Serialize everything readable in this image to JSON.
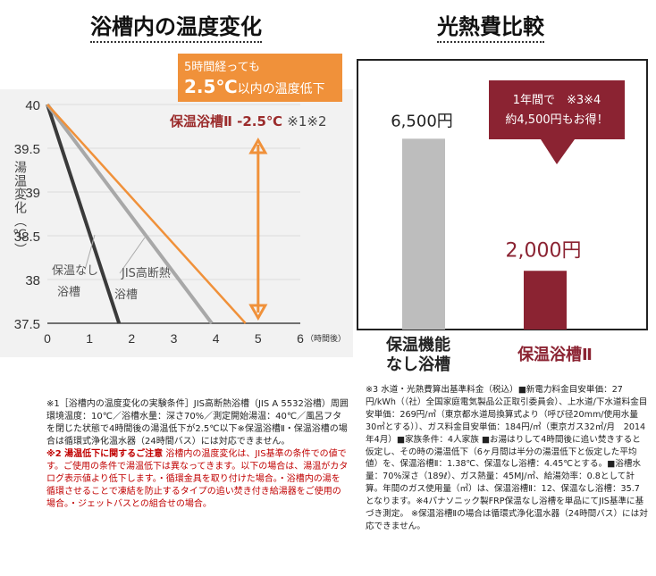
{
  "left_title": "浴槽内の温度変化",
  "right_title": "光熱費比較",
  "chart_data": [
    {
      "type": "line",
      "ylabel": "湯温変化（℃）",
      "xlabel": "（時間後）",
      "x_ticks": [
        "0",
        "1",
        "2",
        "3",
        "4",
        "5",
        "6"
      ],
      "y_ticks": [
        "40",
        "39.5",
        "39",
        "38.5",
        "38",
        "37.5"
      ],
      "xlim": [
        0,
        6
      ],
      "ylim": [
        37.5,
        40
      ],
      "series": [
        {
          "name": "保温なし浴槽",
          "color": "#3a3a3a",
          "x": [
            0,
            1.7
          ],
          "y": [
            40,
            37.5
          ]
        },
        {
          "name": "JIS高断熱浴槽",
          "color": "#a8a8a8",
          "x": [
            0,
            3.9
          ],
          "y": [
            40,
            37.5
          ]
        },
        {
          "name": "保温浴槽Ⅱ",
          "color": "#f0913a",
          "x": [
            0,
            4.7
          ],
          "y": [
            40,
            37.5
          ]
        }
      ],
      "line_labels": {
        "no_insulation": [
          "保温なし",
          "浴槽"
        ],
        "jis": [
          "JIS高断熱",
          "浴槽"
        ]
      },
      "callout": {
        "line1": "5時間経っても",
        "line2_big": "2.5℃",
        "line2_rest": "以内の温度低下",
        "color": "#f0913a"
      },
      "annotation": {
        "name": "保温浴槽Ⅱ",
        "value": "-2.5℃",
        "note": "※1※2",
        "color": "#9b2c2c"
      }
    },
    {
      "type": "bar",
      "categories": [
        [
          "保温機能",
          "なし浴槽"
        ],
        [
          "保温浴槽Ⅱ"
        ]
      ],
      "values": [
        6500,
        2000
      ],
      "value_labels": [
        "6,500円",
        "2,000円"
      ],
      "colors": [
        "#bdbdbd",
        "#8b2332"
      ],
      "label_colors": [
        "#222222",
        "#8b2332"
      ],
      "ylim": [
        0,
        8000
      ],
      "callout": {
        "line1": "1年間で　※3※4",
        "line2": "約4,500円もお得！",
        "color": "#8b2332"
      }
    }
  ],
  "left_notes": {
    "p1": "※1［浴槽内の温度変化の実験条件］JIS高断熱浴槽（JIS A 5532浴槽）周囲環境温度：10℃／浴槽水量：深さ70%／測定開始湯温：40℃／風呂フタを閉じた状態で4時間後の湯温低下が2.5℃以下※保温浴槽Ⅱ・保温浴槽の場合は循環式浄化温水器（24時間バス）には対応できません。",
    "p2_head": "※2 湯温低下に関するご注意",
    "p2_body": " 浴槽内の温度変化は、JIS基準の条件での値です。ご使用の条件で湯温低下は異なってきます。以下の場合は、湯温がカタログ表示値より低下します。・循環金具を取り付けた場合。・浴槽内の湯を循環させることで凍結を防止するタイプの追い焚き付き給湯器をご使用の場合。・ジェットバスとの組合せの場合。"
  },
  "right_notes": {
    "text": "※3 水道・光熱費算出基準料金（税込）■新電力料金目安単価：27円/kWh（（社）全国家庭電気製品公正取引委員会）、上水道/下水道料金目安単価：269円/㎥（東京都水道局換算式より（呼び径20mm/使用水量30㎥とする））、ガス料金目安単価：184円/㎥（東京ガス32㎥/月　2014年4月）■家族条件：4人家族 ■お湯はりして4時間後に追い焚きすると仮定し、その時の湯温低下（6ヶ月間は半分の湯温低下と仮定した平均値）を、保温浴槽Ⅱ：1.38℃、保温なし浴槽：4.45℃とする。■浴槽水量：70%深さ（189ℓ）、ガス熱量：45MJ/㎥、給湯効率：0.8として計算。年間のガス使用量（㎥）は、保温浴槽Ⅱ：12、保温なし浴槽：35.7となります。※4パナソニック製FRP保温なし浴槽を単品にてJIS基準に基づき測定。 ※保温浴槽Ⅱの場合は循環式浄化温水器（24時間バス）には対応できません。"
  }
}
